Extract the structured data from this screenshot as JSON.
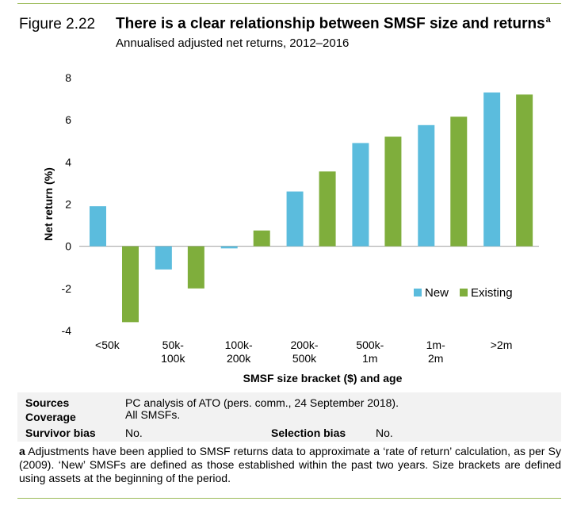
{
  "figure": {
    "label": "Figure 2.22",
    "title": "There is a clear relationship between SMSF size and returns",
    "title_sup": "a",
    "subtitle": "Annualised adjusted net returns, 2012–2016"
  },
  "chart_data": {
    "type": "bar",
    "categories": [
      "<50k",
      "50k-\n100k",
      "100k-\n200k",
      "200k-\n500k",
      "500k-\n1m",
      "1m-\n2m",
      ">2m"
    ],
    "series": [
      {
        "name": "New",
        "color": "#5bbcdd",
        "values": [
          1.9,
          -1.1,
          -0.1,
          2.6,
          4.9,
          5.75,
          7.3
        ]
      },
      {
        "name": "Existing",
        "color": "#7fae3c",
        "values": [
          -3.6,
          -2.0,
          0.75,
          3.55,
          5.2,
          6.15,
          7.2
        ]
      }
    ],
    "xlabel": "SMSF size bracket ($) and age",
    "ylabel": "Net return (%)",
    "ylim": [
      -4,
      8
    ],
    "yticks": [
      -4,
      -2,
      0,
      2,
      4,
      6,
      8
    ],
    "legend_position": "right"
  },
  "meta": {
    "sources_label": "Sources",
    "sources_value": "PC analysis of ATO (pers. comm., 24 September 2018).",
    "coverage_label": "Coverage",
    "coverage_value": "All SMSFs.",
    "survivor_label": "Survivor bias",
    "survivor_value": "No.",
    "selection_label": "Selection bias",
    "selection_value": "No."
  },
  "footnote": {
    "marker": "a",
    "text": " Adjustments have been applied to SMSF returns data to approximate a ‘rate of return’ calculation, as per Sy (2009). ‘New’ SMSFs are defined as those established within the past two years. Size brackets are defined using assets at the beginning of the period."
  }
}
